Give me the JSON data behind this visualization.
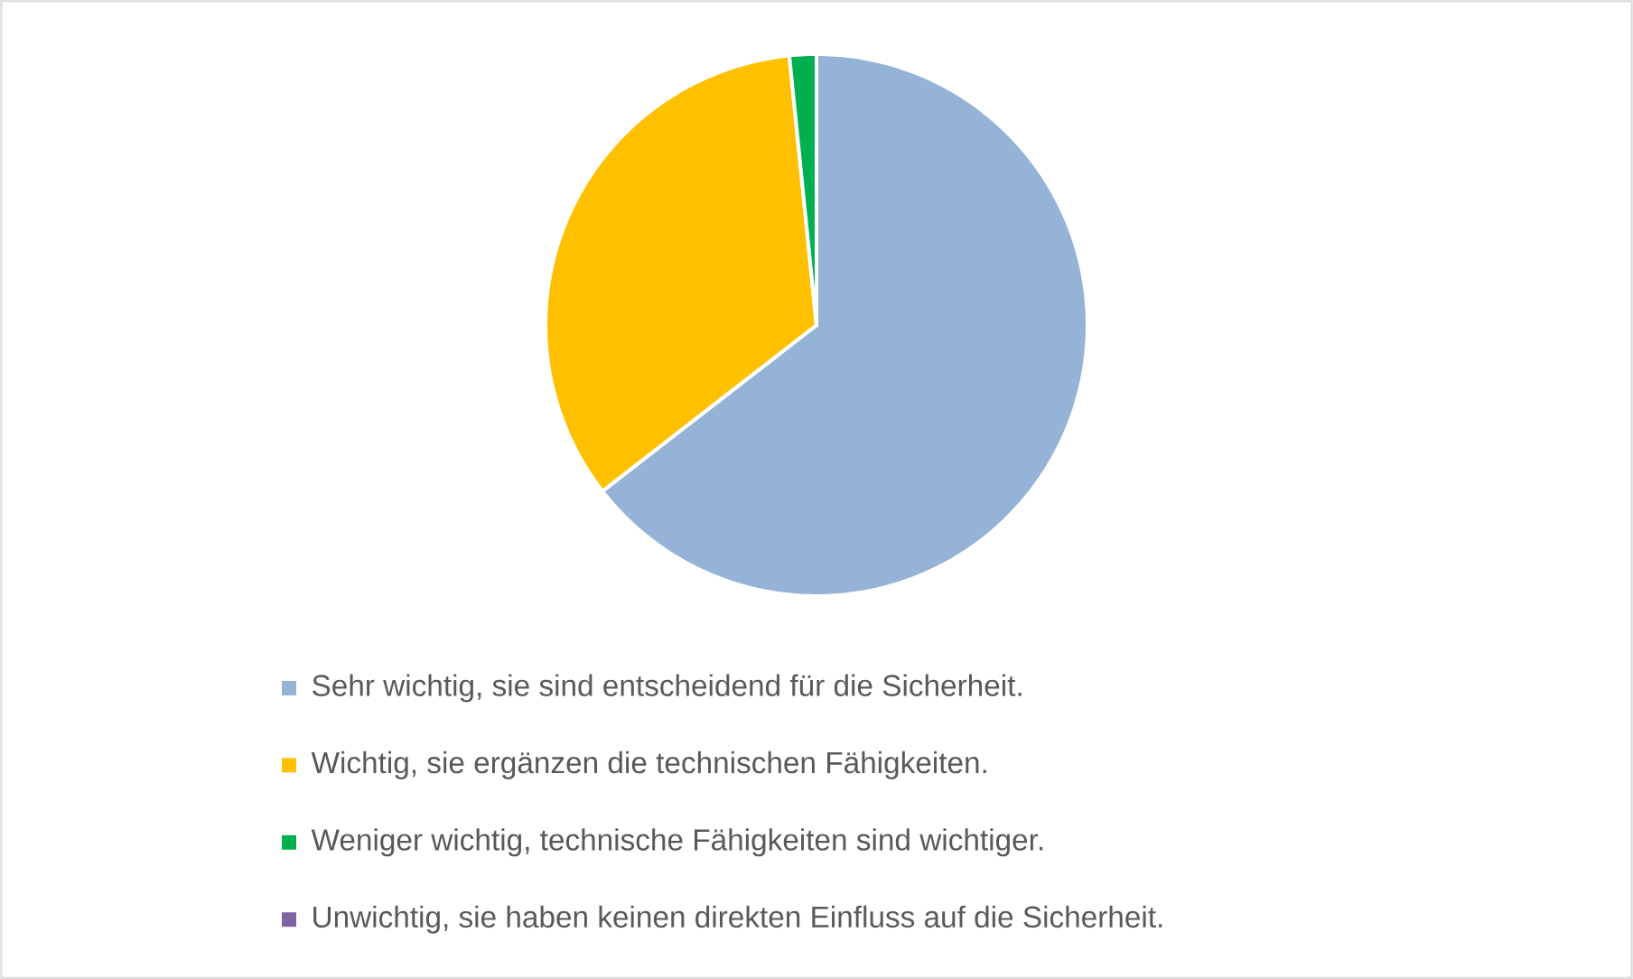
{
  "chart_data": {
    "type": "pie",
    "categories": [
      "Sehr wichtig, sie sind entscheidend für die Sicherheit.",
      "Wichtig, sie ergänzen die technischen Fähigkeiten.",
      "Weniger wichtig, technische Fähigkeiten sind wichtiger.",
      "Unwichtig, sie haben keinen direkten Einfluss auf die Sicherheit."
    ],
    "values": [
      64.5,
      33.9,
      1.6,
      0
    ],
    "colors": [
      "#95b3d7",
      "#ffc000",
      "#00b050",
      "#8064a2"
    ],
    "legend": "bottom"
  }
}
